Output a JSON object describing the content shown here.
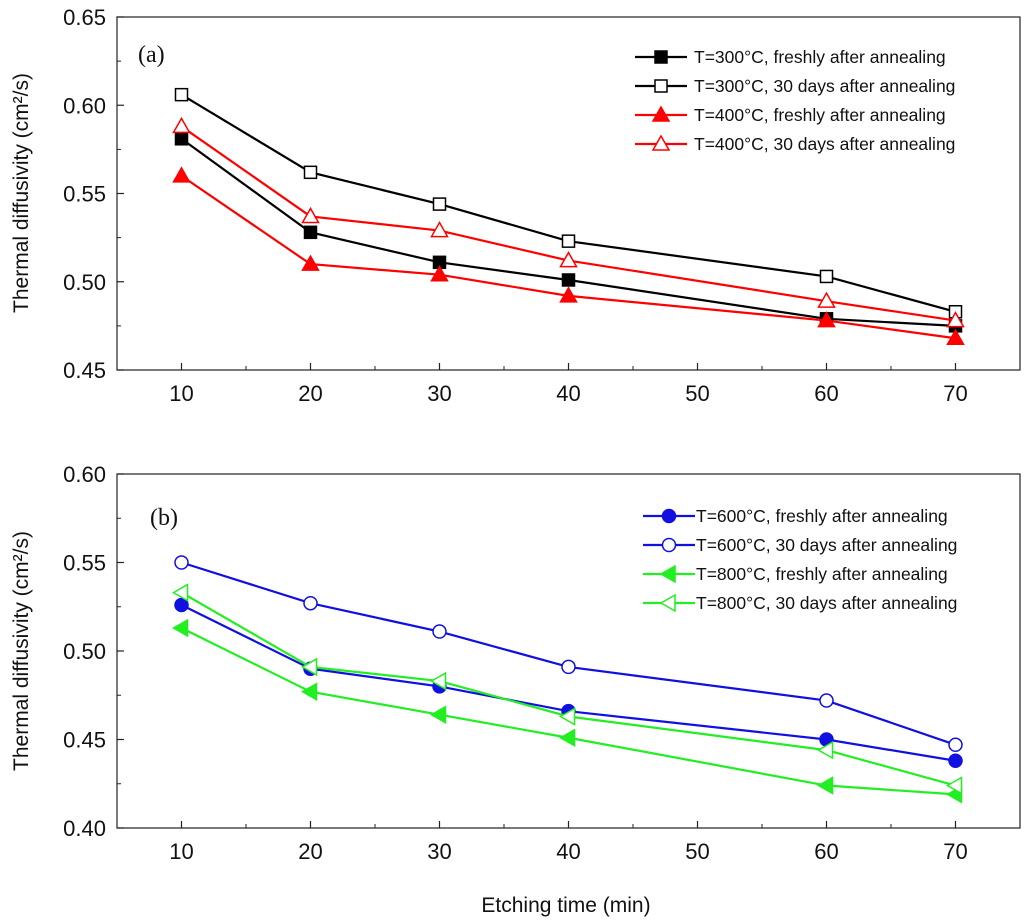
{
  "xlabel": "Etching time (min)",
  "chart_data": [
    {
      "type": "line",
      "panel_label": "(a)",
      "ylabel": "Thermal diffusivity (cm²/s)",
      "xlim": [
        5,
        75
      ],
      "ylim": [
        0.45,
        0.65
      ],
      "xticks": [
        10,
        20,
        30,
        40,
        50,
        60,
        70
      ],
      "yticks": [
        "0.45",
        "0.50",
        "0.55",
        "0.60",
        "0.65"
      ],
      "grid": false,
      "legend_position": "top-right",
      "x": [
        10,
        20,
        30,
        40,
        60,
        70
      ],
      "series": [
        {
          "name": "T=300°C, freshly after annealing",
          "color": "#000000",
          "marker": "square",
          "filled": true,
          "values": [
            0.581,
            0.528,
            0.511,
            0.501,
            0.479,
            0.475
          ]
        },
        {
          "name": "T=300°C, 30 days after annealing",
          "color": "#000000",
          "marker": "square",
          "filled": false,
          "values": [
            0.606,
            0.562,
            0.544,
            0.523,
            0.503,
            0.483
          ]
        },
        {
          "name": "T=400°C, freshly after annealing",
          "color": "#ff0000",
          "marker": "triangle-up",
          "filled": true,
          "values": [
            0.56,
            0.51,
            0.504,
            0.492,
            0.478,
            0.468
          ]
        },
        {
          "name": "T=400°C, 30 days after annealing",
          "color": "#ff0000",
          "marker": "triangle-up",
          "filled": false,
          "values": [
            0.588,
            0.537,
            0.529,
            0.512,
            0.489,
            0.478
          ]
        }
      ]
    },
    {
      "type": "line",
      "panel_label": "(b)",
      "ylabel": "Thermal diffusivity (cm²/s)",
      "xlim": [
        5,
        75
      ],
      "ylim": [
        0.4,
        0.6
      ],
      "xticks": [
        10,
        20,
        30,
        40,
        50,
        60,
        70
      ],
      "yticks": [
        "0.40",
        "0.45",
        "0.50",
        "0.55",
        "0.60"
      ],
      "grid": false,
      "legend_position": "top-right",
      "x": [
        10,
        20,
        30,
        40,
        60,
        70
      ],
      "series": [
        {
          "name": "T=600°C, freshly after annealing",
          "color": "#1010e0",
          "marker": "circle",
          "filled": true,
          "values": [
            0.526,
            0.49,
            0.48,
            0.466,
            0.45,
            0.438
          ]
        },
        {
          "name": "T=600°C, 30 days after annealing",
          "color": "#1010e0",
          "marker": "circle",
          "filled": false,
          "values": [
            0.55,
            0.527,
            0.511,
            0.491,
            0.472,
            0.447
          ]
        },
        {
          "name": "T=800°C, freshly after annealing",
          "color": "#22ee22",
          "marker": "triangle-left",
          "filled": true,
          "values": [
            0.513,
            0.477,
            0.464,
            0.451,
            0.424,
            0.419
          ]
        },
        {
          "name": "T=800°C, 30 days after annealing",
          "color": "#22ee22",
          "marker": "triangle-left",
          "filled": false,
          "values": [
            0.533,
            0.491,
            0.483,
            0.463,
            0.444,
            0.424
          ]
        }
      ]
    }
  ]
}
